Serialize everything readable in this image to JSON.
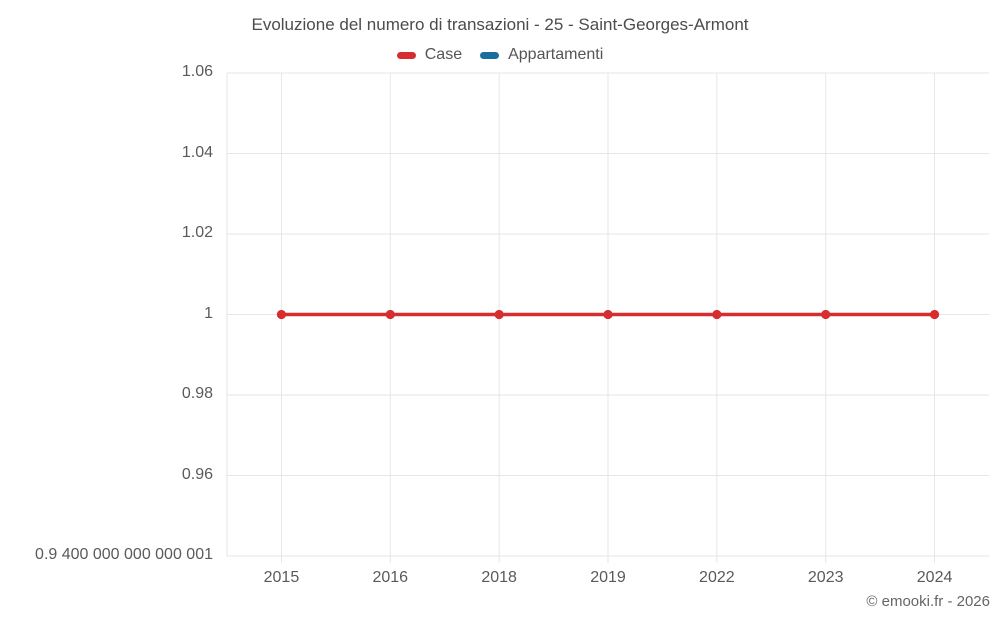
{
  "header": {
    "title": "Evoluzione del numero di transazioni - 25 - Saint-Georges-Armont"
  },
  "legend": {
    "items": [
      {
        "id": "case",
        "label": "Case",
        "color": "#d62e2e"
      },
      {
        "id": "appartamenti",
        "label": "Appartamenti",
        "color": "#1a6e9c"
      }
    ]
  },
  "footer": {
    "copyright": "© emooki.fr - 2026"
  },
  "colors": {
    "series_case": "#d62e2e",
    "series_appartamenti": "#1a6e9c",
    "gridline": "#e6e6e6",
    "title_text": "#4c4c4c",
    "axis_text": "#5a5a5a"
  },
  "chart_data": {
    "type": "line",
    "title": "Evoluzione del numero di transazioni - 25 - Saint-Georges-Armont",
    "categories": [
      "2015",
      "2016",
      "2018",
      "2019",
      "2022",
      "2023",
      "2024"
    ],
    "series": [
      {
        "name": "Case",
        "color": "#d62e2e",
        "marker": "circle",
        "values": [
          1,
          1,
          1,
          1,
          1,
          1,
          1
        ]
      },
      {
        "name": "Appartamenti",
        "color": "#1a6e9c",
        "marker": "circle",
        "values": []
      }
    ],
    "xlabel": "",
    "ylabel": "",
    "ylim": [
      0.94,
      1.06
    ],
    "yticks": [
      {
        "value": 1.06,
        "label": "1.06"
      },
      {
        "value": 1.04,
        "label": "1.04"
      },
      {
        "value": 1.02,
        "label": "1.02"
      },
      {
        "value": 1.0,
        "label": "1"
      },
      {
        "value": 0.98,
        "label": "0.98"
      },
      {
        "value": 0.96,
        "label": "0.96"
      },
      {
        "value": 0.94,
        "label": "0.9 400 000 000 000 001"
      }
    ],
    "grid": true,
    "legend_position": "top"
  }
}
